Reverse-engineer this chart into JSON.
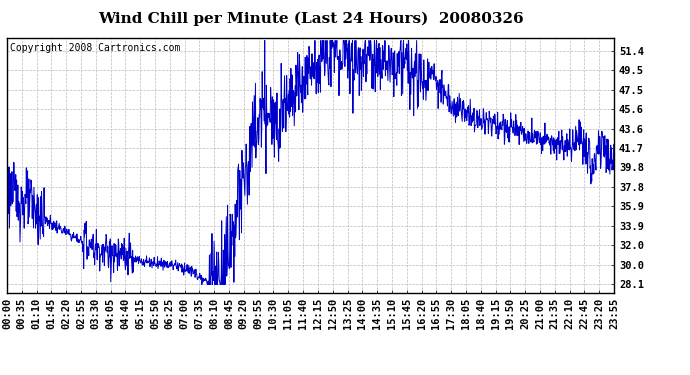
{
  "title": "Wind Chill per Minute (Last 24 Hours)  20080326",
  "copyright": "Copyright 2008 Cartronics.com",
  "line_color": "#0000CC",
  "background_color": "#ffffff",
  "plot_bg_color": "#ffffff",
  "grid_color": "#bbbbbb",
  "yticks": [
    28.1,
    30.0,
    32.0,
    33.9,
    35.9,
    37.8,
    39.8,
    41.7,
    43.6,
    45.6,
    47.5,
    49.5,
    51.4
  ],
  "ylim": [
    27.2,
    52.8
  ],
  "xtick_labels": [
    "00:00",
    "00:35",
    "01:10",
    "01:45",
    "02:20",
    "02:55",
    "03:30",
    "04:05",
    "04:40",
    "05:15",
    "05:50",
    "06:25",
    "07:00",
    "07:35",
    "08:10",
    "08:45",
    "09:20",
    "09:55",
    "10:30",
    "11:05",
    "11:40",
    "12:15",
    "12:50",
    "13:25",
    "14:00",
    "14:35",
    "15:10",
    "15:45",
    "16:20",
    "16:55",
    "17:30",
    "18:05",
    "18:40",
    "19:15",
    "19:50",
    "20:25",
    "21:00",
    "21:35",
    "22:10",
    "22:45",
    "23:20",
    "23:55"
  ],
  "title_fontsize": 11,
  "copyright_fontsize": 7,
  "tick_fontsize": 7.5
}
